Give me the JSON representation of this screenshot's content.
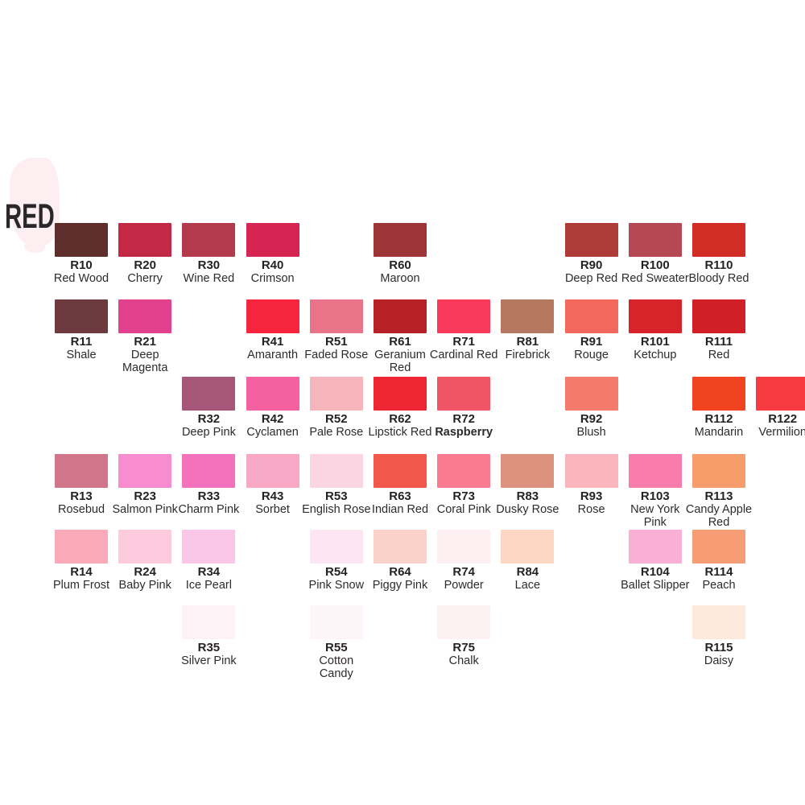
{
  "title": {
    "label": "RED",
    "text_color": "#29272c",
    "brush_color": "#fdeef1"
  },
  "chart_data": {
    "type": "table",
    "title": "RED",
    "description": "Marker color swatch chart, R (red) family. Grid of 12 columns x 6 rows; each entry = code, name, swatch hex color.",
    "columns": 12,
    "rows": 6,
    "swatches": [
      {
        "code": "R10",
        "name": "Red Wood",
        "color": "#5d2e2c",
        "row": 1,
        "col": 1
      },
      {
        "code": "R20",
        "name": "Cherry",
        "color": "#c32845",
        "row": 1,
        "col": 2
      },
      {
        "code": "R30",
        "name": "Wine Red",
        "color": "#b23a4a",
        "row": 1,
        "col": 3
      },
      {
        "code": "R40",
        "name": "Crimson",
        "color": "#d62453",
        "row": 1,
        "col": 4
      },
      {
        "code": "R60",
        "name": "Maroon",
        "color": "#9c3438",
        "row": 1,
        "col": 6
      },
      {
        "code": "R90",
        "name": "Deep Red",
        "color": "#ad3b37",
        "row": 1,
        "col": 9
      },
      {
        "code": "R100",
        "name": "Red Sweater",
        "color": "#b54853",
        "row": 1,
        "col": 10
      },
      {
        "code": "R110",
        "name": "Bloody Red",
        "color": "#d12d25",
        "row": 1,
        "col": 11
      },
      {
        "code": "R11",
        "name": "Shale",
        "color": "#6d3a3e",
        "row": 2,
        "col": 1
      },
      {
        "code": "R21",
        "name": "Deep Magenta",
        "color": "#e2418d",
        "row": 2,
        "col": 2
      },
      {
        "code": "R41",
        "name": "Amaranth",
        "color": "#f6253d",
        "row": 2,
        "col": 4
      },
      {
        "code": "R51",
        "name": "Faded Rose",
        "color": "#e97389",
        "row": 2,
        "col": 5
      },
      {
        "code": "R61",
        "name": "Geranium Red",
        "color": "#b52127",
        "row": 2,
        "col": 6
      },
      {
        "code": "R71",
        "name": "Cardinal Red",
        "color": "#fa3a5d",
        "row": 2,
        "col": 7
      },
      {
        "code": "R81",
        "name": "Firebrick",
        "color": "#b3785f",
        "row": 2,
        "col": 8
      },
      {
        "code": "R91",
        "name": "Rouge",
        "color": "#f3685d",
        "row": 2,
        "col": 9
      },
      {
        "code": "R101",
        "name": "Ketchup",
        "color": "#d8232b",
        "row": 2,
        "col": 10
      },
      {
        "code": "R111",
        "name": "Red",
        "color": "#d01f26",
        "row": 2,
        "col": 11
      },
      {
        "code": "R32",
        "name": "Deep Pink",
        "color": "#a65678",
        "row": 3,
        "col": 3
      },
      {
        "code": "R42",
        "name": "Cyclamen",
        "color": "#f560a0",
        "row": 3,
        "col": 4
      },
      {
        "code": "R52",
        "name": "Pale Rose",
        "color": "#f6b5ba",
        "row": 3,
        "col": 5
      },
      {
        "code": "R62",
        "name": "Lipstick Red",
        "color": "#ee2532",
        "row": 3,
        "col": 6
      },
      {
        "code": "R72",
        "name": "Raspberry",
        "color": "#f05565",
        "row": 3,
        "col": 7,
        "bold_name": true
      },
      {
        "code": "R92",
        "name": "Blush",
        "color": "#f47a6c",
        "row": 3,
        "col": 9
      },
      {
        "code": "R112",
        "name": "Mandarin",
        "color": "#f1431f",
        "row": 3,
        "col": 11
      },
      {
        "code": "R122",
        "name": "Vermilion",
        "color": "#f83b40",
        "row": 3,
        "col": 12
      },
      {
        "code": "R13",
        "name": "Rosebud",
        "color": "#d0758a",
        "row": 4,
        "col": 1
      },
      {
        "code": "R23",
        "name": "Salmon Pink",
        "color": "#f78cce",
        "row": 4,
        "col": 2
      },
      {
        "code": "R33",
        "name": "Charm Pink",
        "color": "#f472bb",
        "row": 4,
        "col": 3
      },
      {
        "code": "R43",
        "name": "Sorbet",
        "color": "#f8a8c4",
        "row": 4,
        "col": 4
      },
      {
        "code": "R53",
        "name": "English Rose",
        "color": "#fbd5e2",
        "row": 4,
        "col": 5
      },
      {
        "code": "R63",
        "name": "Indian Red",
        "color": "#f15849",
        "row": 4,
        "col": 6
      },
      {
        "code": "R73",
        "name": "Coral Pink",
        "color": "#fa7b90",
        "row": 4,
        "col": 7
      },
      {
        "code": "R83",
        "name": "Dusky Rose",
        "color": "#dd927f",
        "row": 4,
        "col": 8
      },
      {
        "code": "R93",
        "name": "Rose",
        "color": "#fab5bd",
        "row": 4,
        "col": 9
      },
      {
        "code": "R103",
        "name": "New York Pink",
        "color": "#f97cad",
        "row": 4,
        "col": 10
      },
      {
        "code": "R113",
        "name": "Candy Apple Red",
        "color": "#f69d6b",
        "row": 4,
        "col": 11
      },
      {
        "code": "R14",
        "name": "Plum Frost",
        "color": "#faa9b8",
        "row": 5,
        "col": 1
      },
      {
        "code": "R24",
        "name": "Baby Pink",
        "color": "#fdcade",
        "row": 5,
        "col": 2
      },
      {
        "code": "R34",
        "name": "Ice Pearl",
        "color": "#fbc7e9",
        "row": 5,
        "col": 3
      },
      {
        "code": "R54",
        "name": "Pink Snow",
        "color": "#fde5f3",
        "row": 5,
        "col": 5
      },
      {
        "code": "R64",
        "name": "Piggy Pink",
        "color": "#fbd2ca",
        "row": 5,
        "col": 6
      },
      {
        "code": "R74",
        "name": "Powder",
        "color": "#fdeff1",
        "row": 5,
        "col": 7
      },
      {
        "code": "R84",
        "name": "Lace",
        "color": "#fdd7c4",
        "row": 5,
        "col": 8
      },
      {
        "code": "R104",
        "name": "Ballet Slipper",
        "color": "#fab0d5",
        "row": 5,
        "col": 10
      },
      {
        "code": "R114",
        "name": "Peach",
        "color": "#f79d75",
        "row": 5,
        "col": 11
      },
      {
        "code": "R35",
        "name": "Silver Pink",
        "color": "#fdf3f6",
        "row": 6,
        "col": 3
      },
      {
        "code": "R55",
        "name": "Cotton Candy",
        "color": "#fdf5f7",
        "row": 6,
        "col": 5
      },
      {
        "code": "R75",
        "name": "Chalk",
        "color": "#fcf1f3",
        "row": 6,
        "col": 7
      },
      {
        "code": "R115",
        "name": "Daisy",
        "color": "#feeadd",
        "row": 6,
        "col": 11
      }
    ]
  }
}
